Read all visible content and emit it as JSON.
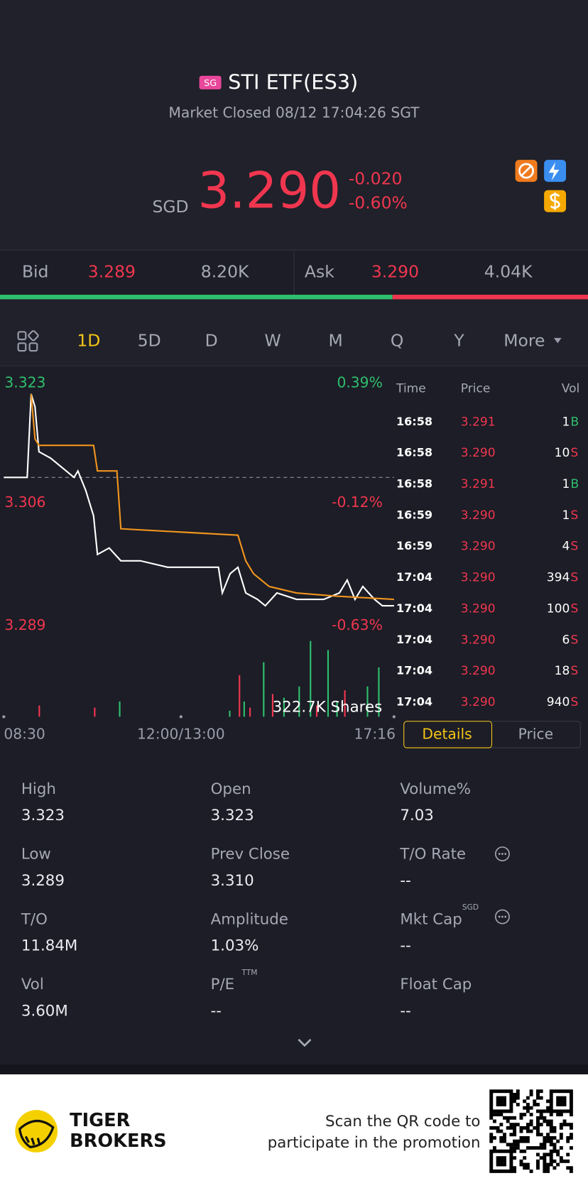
{
  "header": {
    "badge": "SG",
    "title": "STI ETF(ES3)",
    "status": "Market Closed 08/12 17:04:26 SGT"
  },
  "quote": {
    "currency": "SGD",
    "price": "3.290",
    "change": "-0.020",
    "change_pct": "-0.60%"
  },
  "bid_ask": {
    "bid_label": "Bid",
    "bid_price": "3.289",
    "bid_size": "8.20K",
    "ask_label": "Ask",
    "ask_price": "3.290",
    "ask_size": "4.04K"
  },
  "periods": {
    "tabs": [
      "1D",
      "5D",
      "D",
      "W",
      "M",
      "Q",
      "Y",
      "More"
    ],
    "active": 0
  },
  "chart_data": {
    "type": "line",
    "xlim": [
      0,
      100
    ],
    "xticks": [
      {
        "value": 0,
        "label": "08:30"
      },
      {
        "value": 45.4,
        "label": "12:00/13:00"
      },
      {
        "value": 100,
        "label": "17:16"
      }
    ],
    "ylim": [
      3.289,
      3.323
    ],
    "yticks": [
      3.289,
      3.306,
      3.323
    ],
    "y2lim": [
      -0.63,
      0.39
    ],
    "y2ticks": [
      {
        "value": -0.63,
        "label": "-0.63%"
      },
      {
        "value": -0.12,
        "label": "-0.12%"
      },
      {
        "value": 0.39,
        "label": "0.39%"
      }
    ],
    "reference_line": 3.31,
    "series": [
      {
        "color": "#ffffff",
        "x": [
          0,
          6,
          7,
          8,
          9,
          12,
          18,
          19,
          21,
          23,
          24,
          27,
          30,
          35,
          42,
          55,
          56,
          58,
          60,
          62,
          65,
          67,
          70,
          75,
          82,
          86,
          88,
          90,
          92,
          95,
          97,
          100
        ],
        "values": [
          3.31,
          3.31,
          3.323,
          3.321,
          3.314,
          3.313,
          3.31,
          3.311,
          3.308,
          3.304,
          3.298,
          3.299,
          3.297,
          3.297,
          3.296,
          3.296,
          3.292,
          3.295,
          3.296,
          3.292,
          3.291,
          3.29,
          3.292,
          3.291,
          3.291,
          3.292,
          3.294,
          3.291,
          3.293,
          3.291,
          3.29,
          3.29
        ]
      },
      {
        "color": "#f0941e",
        "x": [
          7,
          8,
          9,
          23,
          24,
          29,
          30,
          60,
          62,
          64,
          68,
          75,
          85,
          100
        ],
        "values": [
          3.323,
          3.316,
          3.315,
          3.315,
          3.311,
          3.311,
          3.302,
          3.301,
          3.297,
          3.295,
          3.293,
          3.292,
          3.2915,
          3.291
        ]
      }
    ],
    "volume": {
      "label": "322.7K Shares",
      "x": [
        9.1,
        23.3,
        29.7,
        57.9,
        60.4,
        61.6,
        63.1,
        66.6,
        68.9,
        71.8,
        75.7,
        78.6,
        80.2,
        83.1,
        85.4,
        87.4,
        93.2,
        96.1
      ],
      "values": [
        48000,
        39000,
        65000,
        26000,
        177000,
        65000,
        39000,
        232000,
        97000,
        81000,
        129000,
        322700,
        48000,
        284000,
        65000,
        113000,
        129000,
        210000
      ],
      "colors": [
        "#f0364f",
        "#f0364f",
        "#2fbf6e",
        "#2fbf6e",
        "#f0364f",
        "#2fbf6e",
        "#f0364f",
        "#2fbf6e",
        "#f0364f",
        "#2fbf6e",
        "#2fbf6e",
        "#2fbf6e",
        "#f0364f",
        "#2fbf6e",
        "#2fbf6e",
        "#f0364f",
        "#2fbf6e",
        "#2fbf6e"
      ]
    }
  },
  "trades": {
    "columns": [
      "Time",
      "Price",
      "Vol"
    ],
    "rows": [
      [
        "16:58",
        "3.291",
        "1",
        "B"
      ],
      [
        "16:58",
        "3.290",
        "10",
        "S"
      ],
      [
        "16:58",
        "3.291",
        "1",
        "B"
      ],
      [
        "16:59",
        "3.290",
        "1",
        "S"
      ],
      [
        "16:59",
        "3.290",
        "4",
        "S"
      ],
      [
        "17:04",
        "3.290",
        "394",
        "S"
      ],
      [
        "17:04",
        "3.290",
        "100",
        "S"
      ],
      [
        "17:04",
        "3.290",
        "6",
        "S"
      ],
      [
        "17:04",
        "3.290",
        "18",
        "S"
      ],
      [
        "17:04",
        "3.290",
        "940",
        "S"
      ]
    ]
  },
  "detail_tabs": [
    "Details",
    "Price"
  ],
  "stats": [
    {
      "label": "High",
      "value": "3.323"
    },
    {
      "label": "Open",
      "value": "3.323"
    },
    {
      "label": "Volume%",
      "value": "7.03"
    },
    {
      "label": "Low",
      "value": "3.289"
    },
    {
      "label": "Prev Close",
      "value": "3.310"
    },
    {
      "label": "T/O Rate",
      "value": "--"
    },
    {
      "label": "T/O",
      "value": "11.84M"
    },
    {
      "label": "Amplitude",
      "value": "1.03%"
    },
    {
      "label": "Mkt Cap",
      "value": "--",
      "note": "SGD"
    },
    {
      "label": "Vol",
      "value": "3.60M"
    },
    {
      "label": "P/E",
      "value": "--",
      "note": "TTM"
    },
    {
      "label": "Float Cap",
      "value": "--"
    }
  ],
  "footer": {
    "brand": [
      "TIGER",
      "BROKERS"
    ],
    "promo": [
      "Scan the QR code to",
      "participate in the promotion"
    ]
  }
}
